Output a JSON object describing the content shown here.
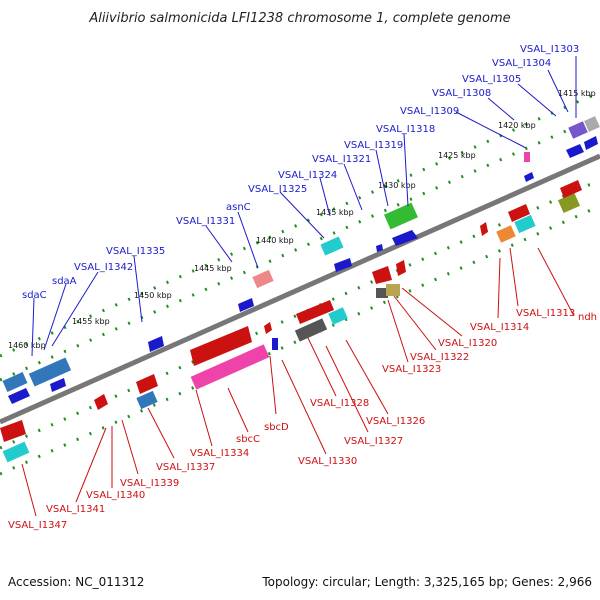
{
  "title": "Aliivibrio salmonicida LFI1238 chromosome 1, complete genome",
  "footer": {
    "accession": "Accession: NC_011312",
    "summary": "Topology: circular; Length: 3,325,165 bp; Genes: 2,966"
  },
  "ticks": [
    "1415 kbp",
    "1420 kbp",
    "1425 kbp",
    "1430 kbp",
    "1435 kbp",
    "1440 kbp",
    "1445 kbp",
    "1450 kbp",
    "1455 kbp",
    "1460 kbp"
  ],
  "labels_top": [
    "VSAL_I1303",
    "VSAL_I1304",
    "VSAL_I1305",
    "VSAL_I1308",
    "VSAL_I1309",
    "VSAL_I1318",
    "VSAL_I1319",
    "VSAL_I1321",
    "VSAL_I1324",
    "VSAL_I1325",
    "asnC",
    "VSAL_I1331",
    "VSAL_I1335",
    "VSAL_I1342",
    "sdaA",
    "sdaC"
  ],
  "labels_bottom": [
    "ndh",
    "VSAL_I1313",
    "VSAL_I1314",
    "VSAL_I1320",
    "VSAL_I1322",
    "VSAL_I1323",
    "VSAL_I1326",
    "VSAL_I1327",
    "VSAL_I1328",
    "VSAL_I1330",
    "sbcD",
    "sbcC",
    "VSAL_I1334",
    "VSAL_I1337",
    "VSAL_I1339",
    "VSAL_I1340",
    "VSAL_I1341",
    "VSAL_I1347"
  ],
  "colors": {
    "forward": "#1a1acc",
    "reverse": "#cc1111",
    "backbone": "#888888",
    "guide": "#1f8f1f"
  }
}
